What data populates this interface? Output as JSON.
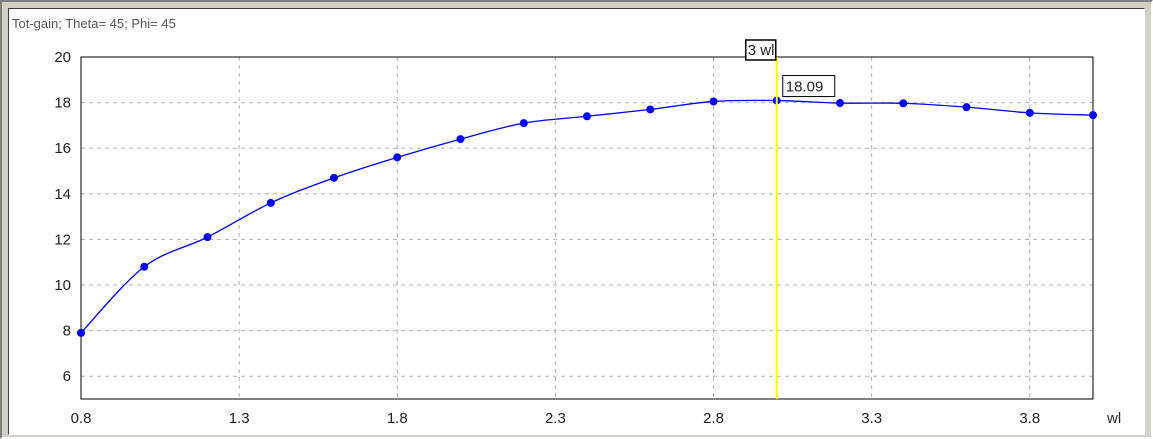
{
  "chart_data": {
    "type": "line",
    "title": "Tot-gain; Theta= 45; Phi= 45",
    "xlabel": "wl",
    "ylabel": "",
    "xlim": [
      0.8,
      4.0
    ],
    "ylim": [
      5,
      20
    ],
    "x_ticks": [
      "0.8",
      "1.3",
      "1.8",
      "2.3",
      "2.8",
      "3.3",
      "3.8"
    ],
    "y_ticks": [
      "6",
      "8",
      "10",
      "12",
      "14",
      "16",
      "18",
      "20"
    ],
    "grid": true,
    "series": [
      {
        "color": "#0000ff",
        "x": [
          0.8,
          1.0,
          1.2,
          1.4,
          1.6,
          1.8,
          2.0,
          2.2,
          2.4,
          2.6,
          2.8,
          3.0,
          3.2,
          3.4,
          3.6,
          3.8,
          4.0
        ],
        "y": [
          7.9,
          10.8,
          12.1,
          13.6,
          14.7,
          15.6,
          16.4,
          17.1,
          17.4,
          17.7,
          18.05,
          18.09,
          17.98,
          17.97,
          17.8,
          17.55,
          17.45
        ]
      }
    ],
    "cursor": {
      "x": 3.0,
      "label": "3 wl",
      "value_label": "18.09",
      "color": "#ffff00"
    }
  }
}
